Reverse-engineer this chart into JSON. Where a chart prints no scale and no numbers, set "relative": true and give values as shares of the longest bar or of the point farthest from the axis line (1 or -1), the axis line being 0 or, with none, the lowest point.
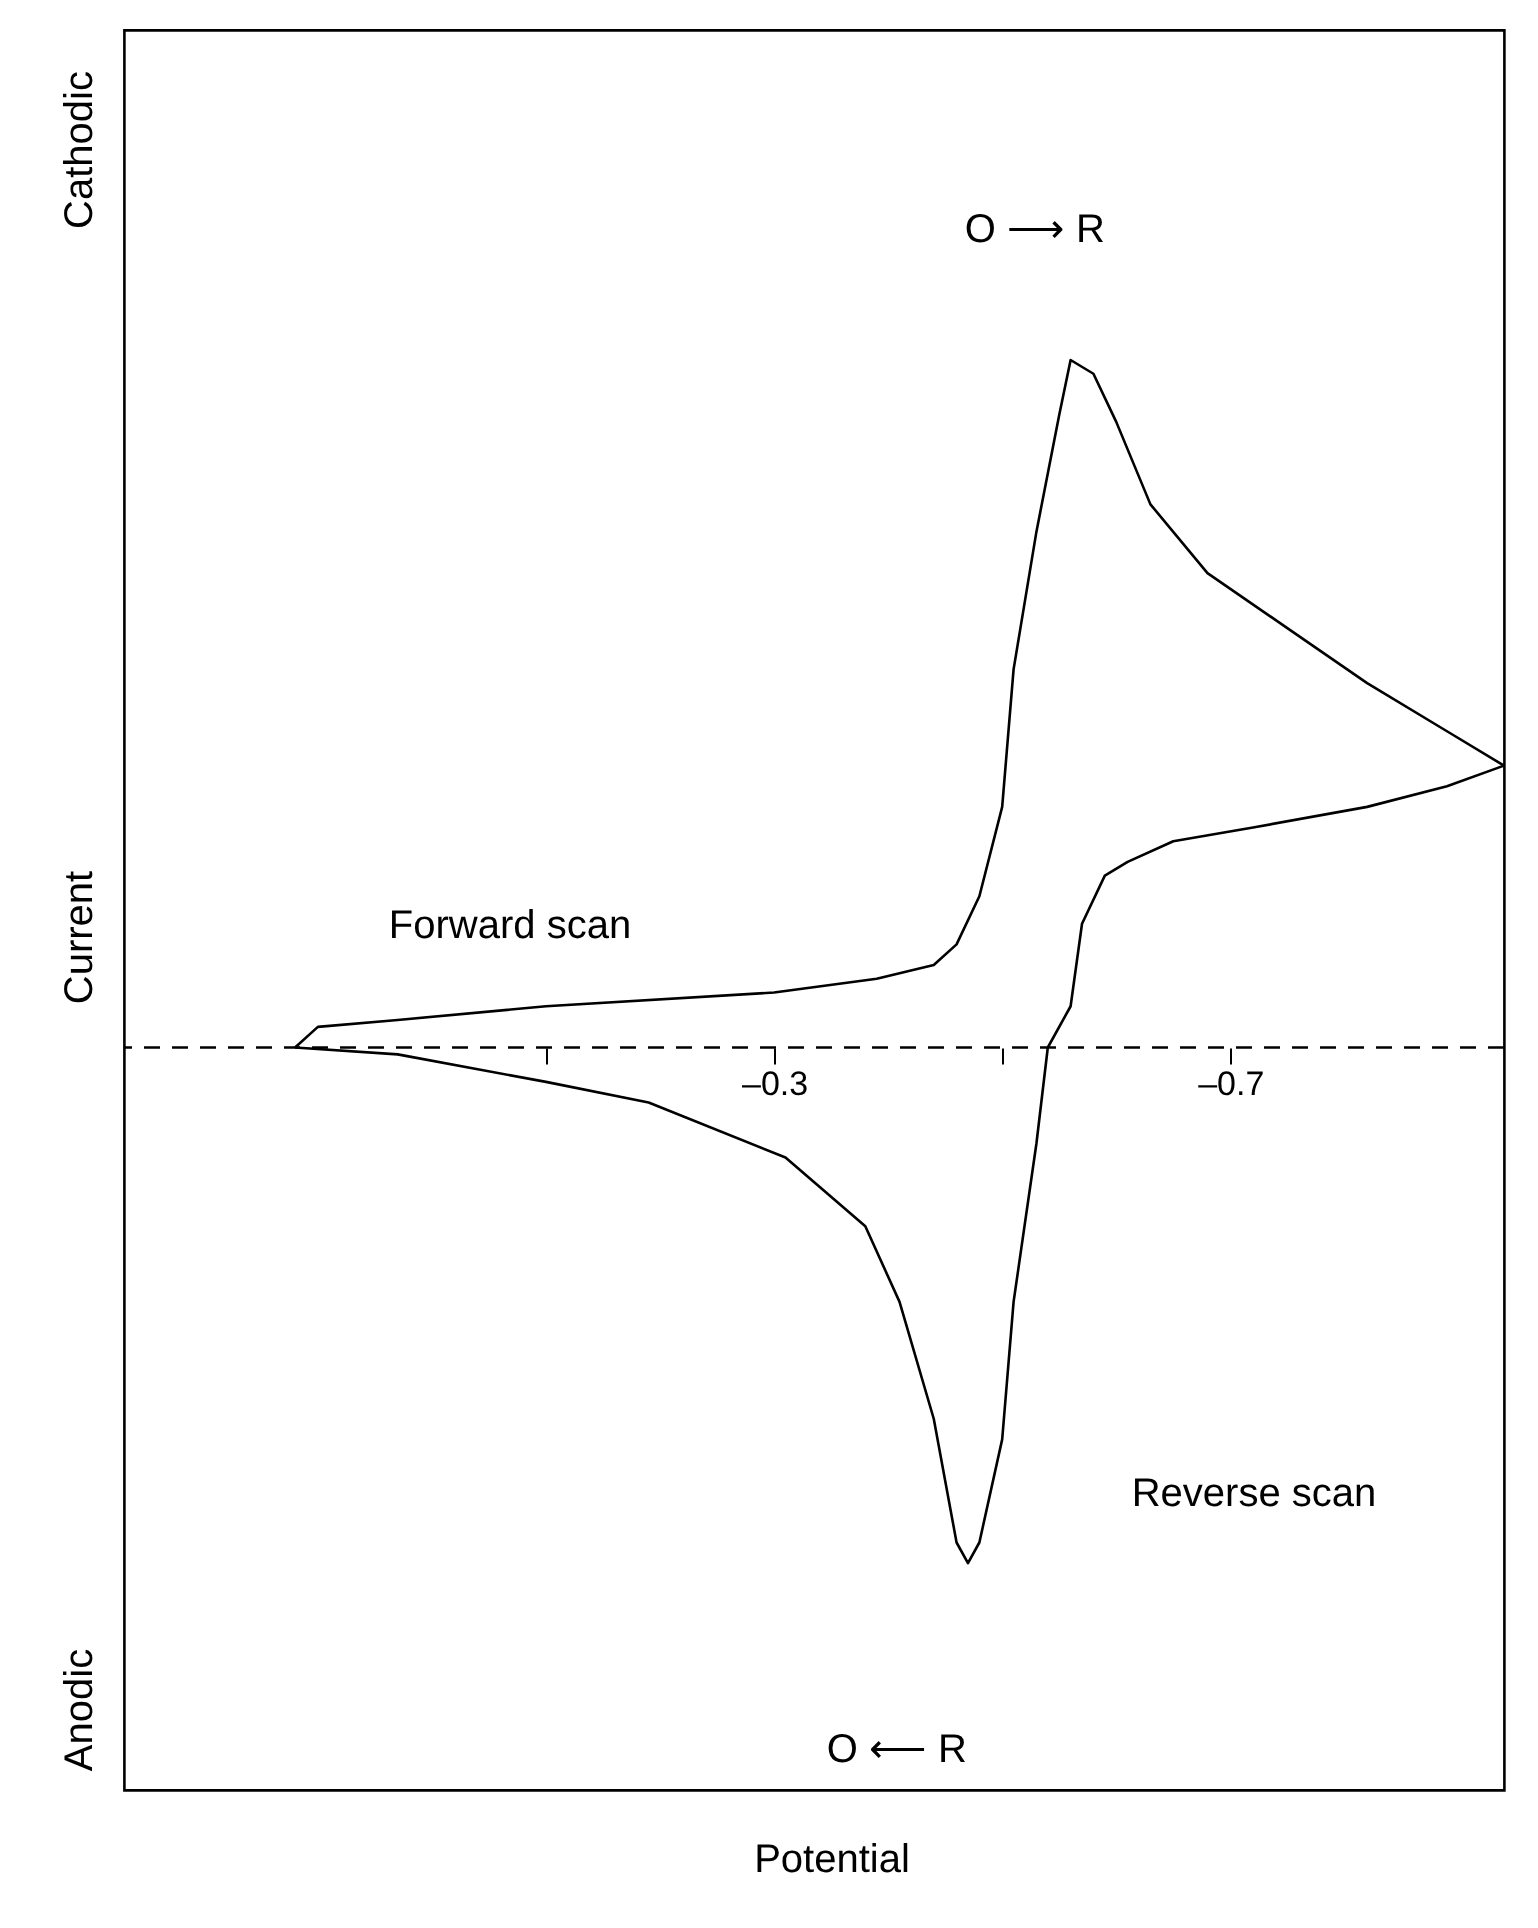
{
  "chart_data": {
    "type": "line",
    "relative": true,
    "ylabel": "Current",
    "annotations": [
      "Cathodic",
      "Anodic",
      "O ⟶ R",
      "O ⟵ R",
      "Forward scan",
      "Reverse scan",
      "Potential"
    ],
    "series": [
      {
        "color": "#000000",
        "x": [
          0.12,
          0.1,
          0.03,
          -0.1,
          -0.3,
          -0.39,
          -0.44,
          -0.46,
          -0.48,
          -0.5,
          -0.51,
          -0.53,
          -0.55,
          -0.56,
          -0.58,
          -0.6,
          -0.63,
          -0.68,
          -0.75,
          -0.82,
          -0.89,
          -0.94
        ],
        "values": [
          0,
          0.03,
          0.04,
          0.06,
          0.08,
          0.1,
          0.12,
          0.15,
          0.22,
          0.35,
          0.55,
          0.75,
          0.92,
          1.0,
          0.98,
          0.91,
          0.79,
          0.69,
          0.61,
          0.53,
          0.46,
          0.41
        ]
      },
      {
        "color": "#000000",
        "x": [
          -0.94,
          -0.89,
          -0.82,
          -0.72,
          -0.65,
          -0.61,
          -0.59,
          -0.57,
          -0.56,
          -0.54,
          -0.53,
          -0.51,
          -0.5,
          -0.48,
          -0.47,
          -0.46,
          -0.44,
          -0.41,
          -0.38,
          -0.31,
          -0.19,
          -0.1,
          0.03,
          0.12
        ],
        "values": [
          0.41,
          0.38,
          0.35,
          0.32,
          0.3,
          0.27,
          0.25,
          0.18,
          0.06,
          0,
          -0.14,
          -0.37,
          -0.57,
          -0.72,
          -0.75,
          -0.72,
          -0.54,
          -0.37,
          -0.26,
          -0.16,
          -0.08,
          -0.05,
          -0.01,
          0
        ]
      }
    ],
    "xlim": [
      0.27,
      -0.94
    ],
    "xticks": [
      {
        "value": -0.1,
        "label": null
      },
      {
        "value": -0.3,
        "label": "–0.3"
      },
      {
        "value": -0.5,
        "label": null
      },
      {
        "value": -0.7,
        "label": "–0.7"
      }
    ],
    "ref_lines": [
      {
        "axis": "y",
        "value": 0,
        "line_style": "dashed"
      }
    ],
    "grid": false,
    "marker": "none",
    "line_style": "solid"
  }
}
